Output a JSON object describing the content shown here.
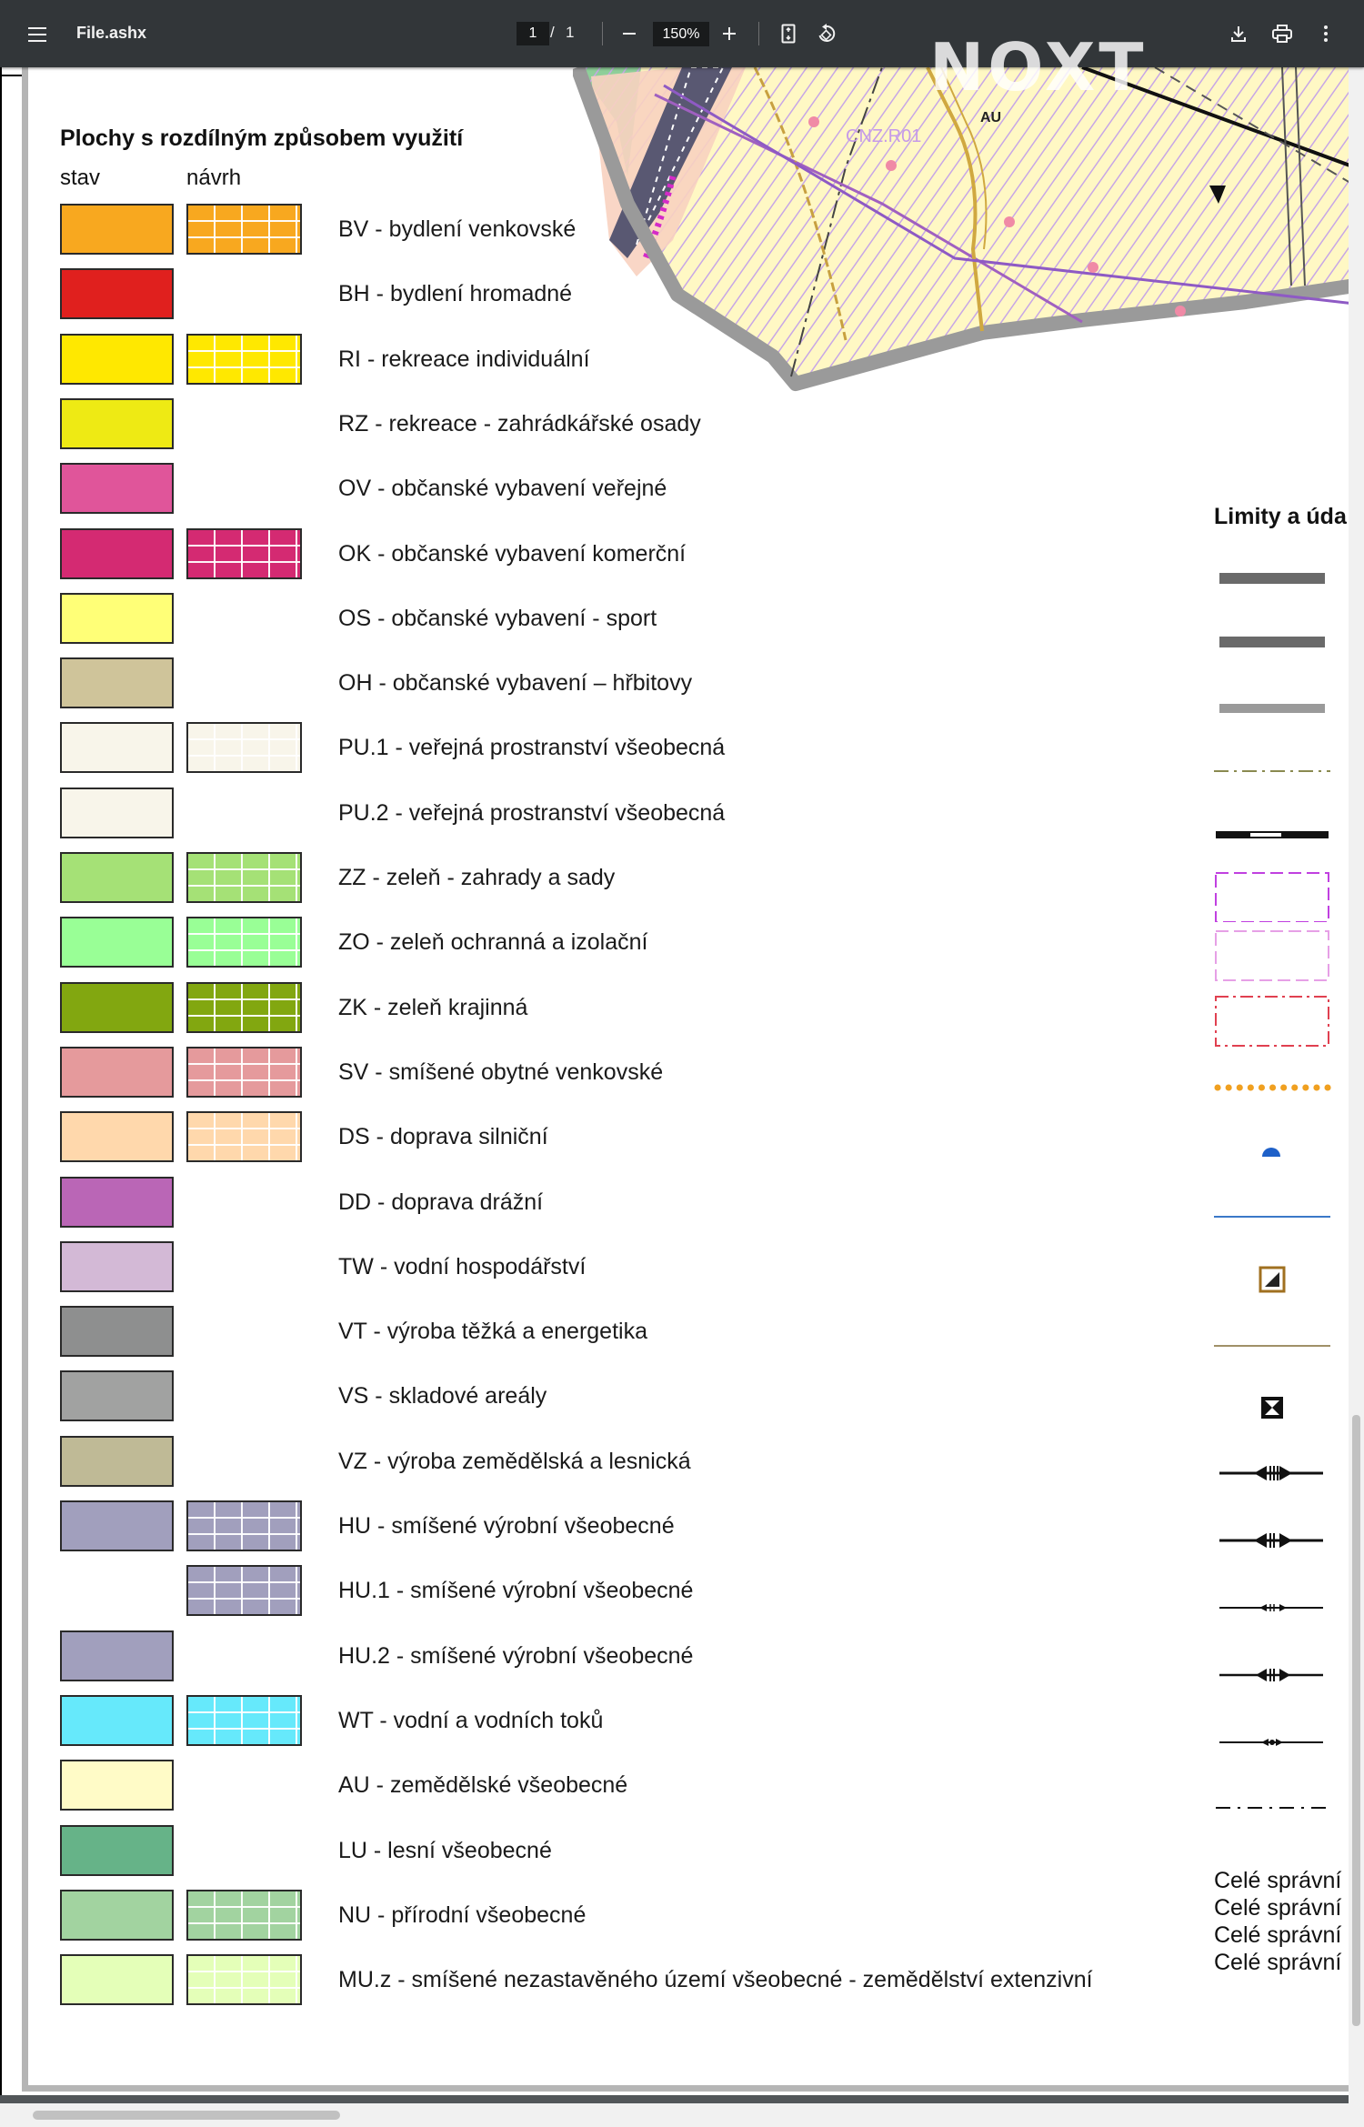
{
  "toolbar": {
    "title": "File.ashx",
    "page_current": "1",
    "page_sep": "/",
    "page_total": "1",
    "zoom": "150%"
  },
  "watermark": "NOXT",
  "legend": {
    "title": "Plochy s rozdílným způsobem využití",
    "col_stav": "stav",
    "col_navrh": "návrh",
    "rows": [
      {
        "label": "BV - bydlení venkovské",
        "color": "#f8a81f",
        "stav": true,
        "navrh": true
      },
      {
        "label": "BH - bydlení hromadné",
        "color": "#e0201e",
        "stav": true,
        "navrh": false
      },
      {
        "label": "RI - rekreace individuální",
        "color": "#ffe800",
        "stav": true,
        "navrh": true
      },
      {
        "label": "RZ - rekreace - zahrádkářské osady",
        "color": "#eeea14",
        "stav": true,
        "navrh": false
      },
      {
        "label": "OV - občanské vybavení veřejné",
        "color": "#e0559a",
        "stav": true,
        "navrh": false
      },
      {
        "label": "OK - občanské vybavení komerční",
        "color": "#d42a72",
        "stav": true,
        "navrh": true
      },
      {
        "label": "OS - občanské vybavení - sport",
        "color": "#ffff77",
        "stav": true,
        "navrh": false
      },
      {
        "label": "OH - občanské vybavení – hřbitovy",
        "color": "#cfc49a",
        "stav": true,
        "navrh": false
      },
      {
        "label": "PU.1 - veřejná prostranství všeobecná",
        "color": "#f8f5ea",
        "stav": true,
        "navrh": true
      },
      {
        "label": "PU.2 - veřejná prostranství všeobecná",
        "color": "#f8f5ea",
        "stav": true,
        "navrh": false
      },
      {
        "label": "ZZ - zeleň - zahrady a sady",
        "color": "#a5e176",
        "stav": true,
        "navrh": true
      },
      {
        "label": "ZO - zeleň ochranná a izolační",
        "color": "#99ff96",
        "stav": true,
        "navrh": true
      },
      {
        "label": "ZK - zeleň krajinná",
        "color": "#82a710",
        "stav": true,
        "navrh": true
      },
      {
        "label": "SV - smíšené obytné venkovské",
        "color": "#e59a9c",
        "stav": true,
        "navrh": true
      },
      {
        "label": "DS - doprava silniční",
        "color": "#ffd8ac",
        "stav": true,
        "navrh": true
      },
      {
        "label": "DD - doprava drážní",
        "color": "#ba66b6",
        "stav": true,
        "navrh": false
      },
      {
        "label": "TW - vodní hospodářství",
        "color": "#d3b9d6",
        "stav": true,
        "navrh": false
      },
      {
        "label": "VT - výroba těžká a energetika",
        "color": "#8e8f8f",
        "stav": true,
        "navrh": false
      },
      {
        "label": "VS - skladové areály",
        "color": "#a1a2a1",
        "stav": true,
        "navrh": false
      },
      {
        "label": "VZ - výroba zemědělská a lesnická",
        "color": "#bfba96",
        "stav": true,
        "navrh": false
      },
      {
        "label": "HU - smíšené výrobní všeobecné",
        "color": "#a19fbd",
        "stav": true,
        "navrh": true
      },
      {
        "label": "HU.1 - smíšené výrobní všeobecné",
        "color": "#a19fbd",
        "stav": false,
        "navrh": true
      },
      {
        "label": "HU.2 - smíšené výrobní všeobecné",
        "color": "#a19fbd",
        "stav": true,
        "navrh": false
      },
      {
        "label": "WT - vodní a vodních toků",
        "color": "#66e9fb",
        "stav": true,
        "navrh": true
      },
      {
        "label": "AU - zemědělské všeobecné",
        "color": "#fffbc7",
        "stav": true,
        "navrh": false
      },
      {
        "label": "LU - lesní všeobecné",
        "color": "#66b388",
        "stav": true,
        "navrh": false
      },
      {
        "label": "NU - přírodní všeobecné",
        "color": "#a2d3a0",
        "stav": true,
        "navrh": true
      },
      {
        "label": "MU.z - smíšené nezastavěného území všeobecné - zemědělství extenzivní",
        "color": "#e4ffb8",
        "stav": true,
        "navrh": true
      }
    ]
  },
  "limits": {
    "title": "Limity a úda",
    "footer_lines": [
      "Celé správní",
      "Celé správní",
      "Celé správní",
      "Celé správní"
    ]
  },
  "map": {
    "label_cnz": "CNZ.R01",
    "label_au": "AU"
  }
}
